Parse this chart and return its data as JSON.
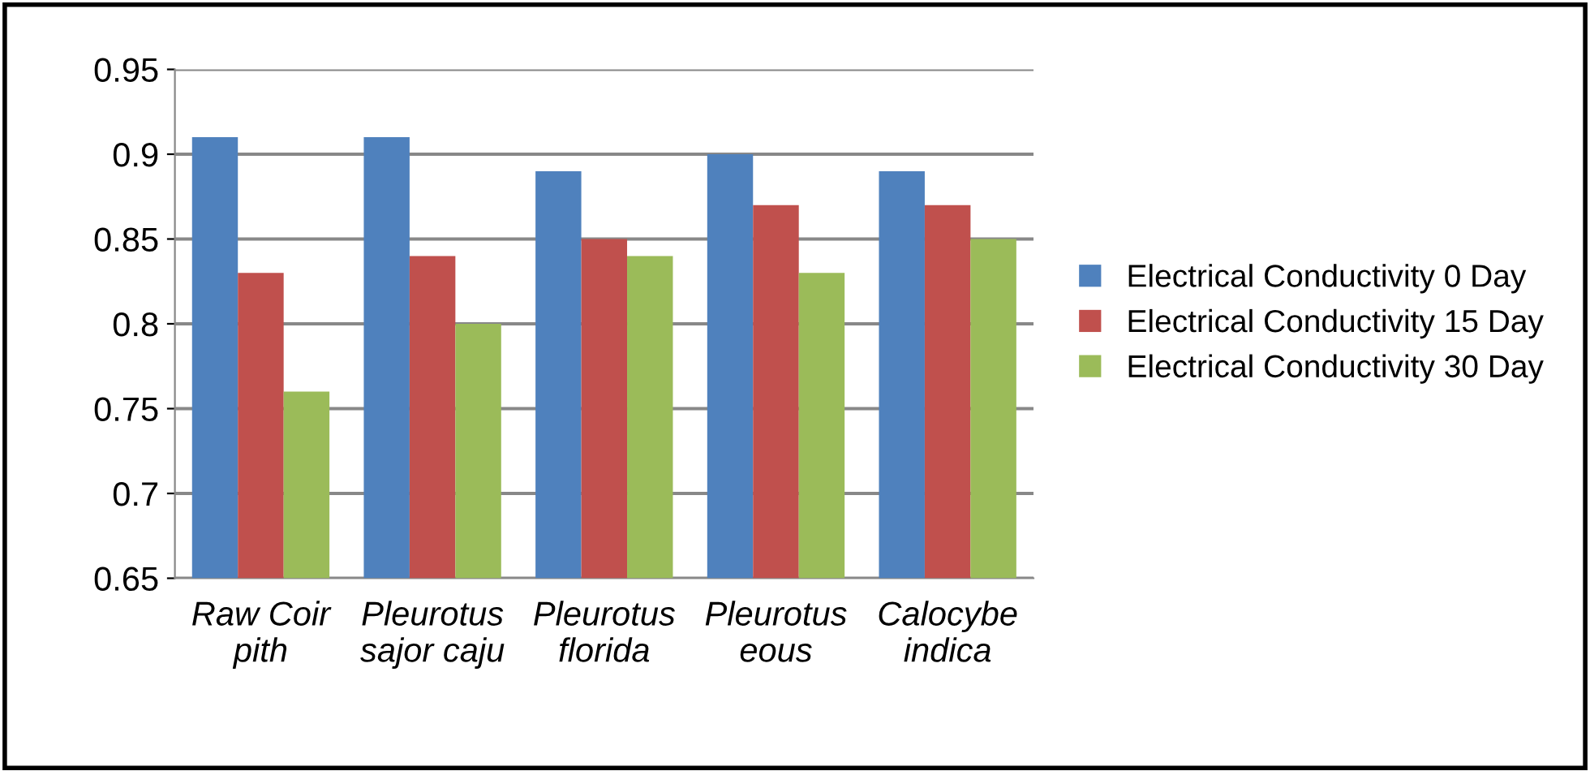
{
  "chart_data": {
    "type": "bar",
    "categories": [
      "Raw Coir\npith",
      "Pleurotus\nsajor caju",
      "Pleurotus\nflorida",
      "Pleurotus\neous",
      "Calocybe\nindica"
    ],
    "series": [
      {
        "name": "Electrical Conductivity 0 Day",
        "color": "#4f81bd",
        "values": [
          0.91,
          0.91,
          0.89,
          0.9,
          0.89
        ]
      },
      {
        "name": "Electrical Conductivity 15 Day",
        "color": "#c0504d",
        "values": [
          0.83,
          0.84,
          0.85,
          0.87,
          0.87
        ]
      },
      {
        "name": "Electrical Conductivity 30 Day",
        "color": "#9bbb59",
        "values": [
          0.76,
          0.8,
          0.84,
          0.83,
          0.85
        ]
      }
    ],
    "ylim": [
      0.65,
      0.95
    ],
    "yticks": [
      0.65,
      0.7,
      0.75,
      0.8,
      0.85,
      0.9,
      0.95
    ],
    "grid": "y",
    "legend": "right"
  }
}
